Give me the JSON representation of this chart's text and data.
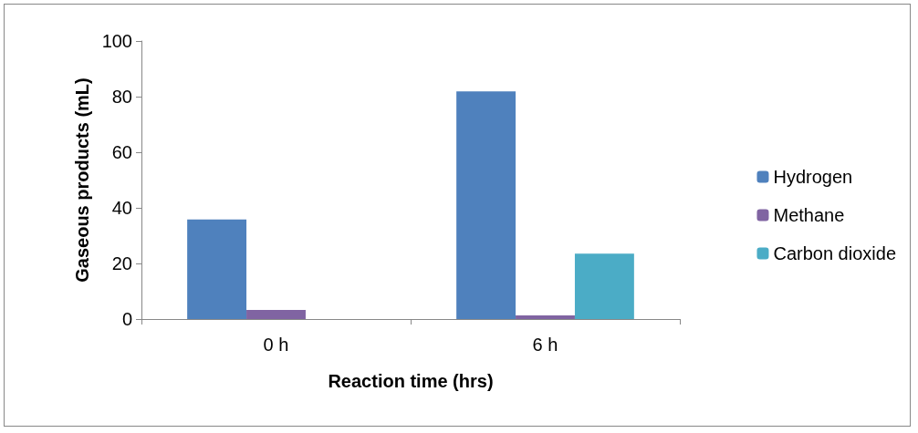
{
  "chart_data": {
    "type": "bar",
    "xlabel": "Reaction time (hrs)",
    "ylabel": "Gaseous products (mL)",
    "categories": [
      "0 h",
      "6 h"
    ],
    "series": [
      {
        "name": "Hydrogen",
        "color": "#4f81bd",
        "values": [
          35.8,
          81.9
        ]
      },
      {
        "name": "Methane",
        "color": "#8064a2",
        "values": [
          3.3,
          1.3
        ]
      },
      {
        "name": "Carbon dioxide",
        "color": "#4bacc6",
        "values": [
          0,
          23.5
        ]
      }
    ],
    "ylim": [
      0,
      100
    ],
    "yticks": [
      0,
      20,
      40,
      60,
      80,
      100
    ],
    "grid": false,
    "legend": "right"
  }
}
